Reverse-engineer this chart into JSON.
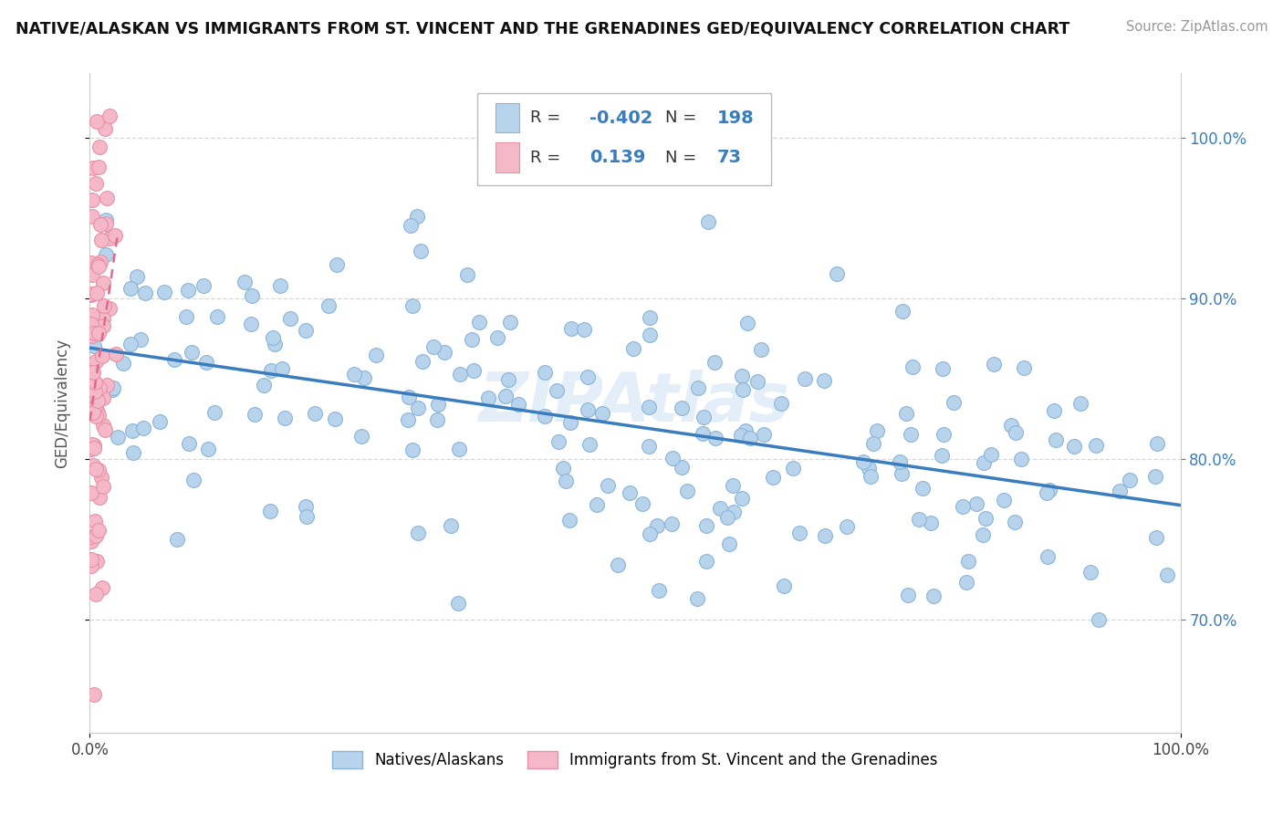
{
  "title": "NATIVE/ALASKAN VS IMMIGRANTS FROM ST. VINCENT AND THE GRENADINES GED/EQUIVALENCY CORRELATION CHART",
  "source": "Source: ZipAtlas.com",
  "ylabel": "GED/Equivalency",
  "xlim": [
    0.0,
    1.0
  ],
  "ylim": [
    0.63,
    1.04
  ],
  "y_tick_labels": [
    "70.0%",
    "80.0%",
    "90.0%",
    "100.0%"
  ],
  "y_tick_values": [
    0.7,
    0.8,
    0.9,
    1.0
  ],
  "blue_color": "#b8d4ec",
  "blue_edge_color": "#8ab4d8",
  "pink_color": "#f5b8c8",
  "pink_edge_color": "#e890a8",
  "blue_line_color": "#3a7dbf",
  "pink_line_color": "#e06888",
  "legend_blue_label": "Natives/Alaskans",
  "legend_pink_label": "Immigrants from St. Vincent and the Grenadines",
  "R_blue": -0.402,
  "N_blue": 198,
  "R_pink": 0.139,
  "N_pink": 73,
  "grid_color": "#d8d8d8",
  "background_color": "#ffffff",
  "watermark": "ZIPAtlas",
  "stat_label_color": "#3a7dbf",
  "stat_text_color": "#333333"
}
